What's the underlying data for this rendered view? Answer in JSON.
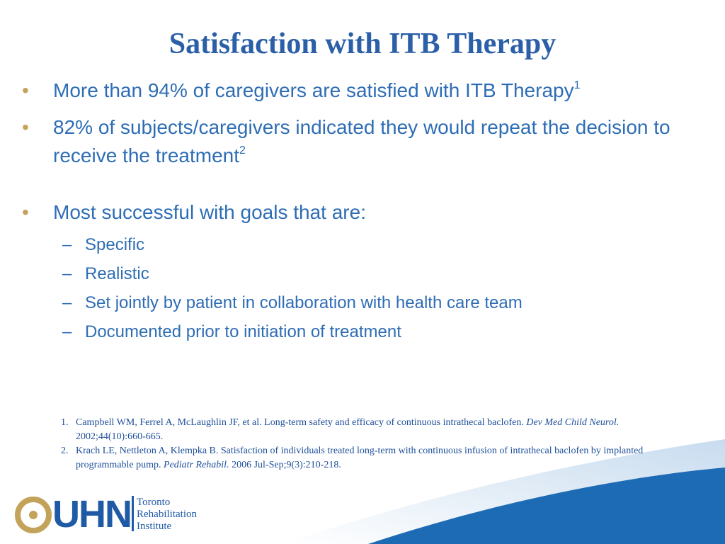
{
  "header": {
    "title": "Satisfaction with ITB Therapy"
  },
  "bullets": [
    {
      "text": "More than 94% of caregivers are satisfied with ITB Therapy",
      "sup": "1"
    },
    {
      "text": "82% of subjects/caregivers indicated they would repeat the decision to receive the treatment",
      "sup": "2"
    },
    {
      "text": "Most successful with goals that are:",
      "sub": [
        "Specific",
        "Realistic",
        "Set jointly by patient in collaboration with health care team",
        "Documented prior to initiation of treatment"
      ]
    }
  ],
  "references": [
    {
      "number": "1.",
      "text": "Campbell WM, Ferrel A, McLaughlin JF, et al. Long-term safety and efficacy of continuous intrathecal baclofen.",
      "journal": "Dev Med Child Neurol.",
      "details": "2002;44(10):660-665."
    },
    {
      "number": "2.",
      "text": "Krach LE, Nettleton A, Klempka B. Satisfaction of individuals treated long-term with continuous infusion of intrathecal baclofen by implanted programmable pump.",
      "journal": "Pediatr Rehabil.",
      "details": "2006 Jul-Sep;9(3):210-218."
    }
  ],
  "logo": {
    "mark": "UHN",
    "lines": [
      "Toronto",
      "Rehabilitation",
      "Institute"
    ]
  }
}
